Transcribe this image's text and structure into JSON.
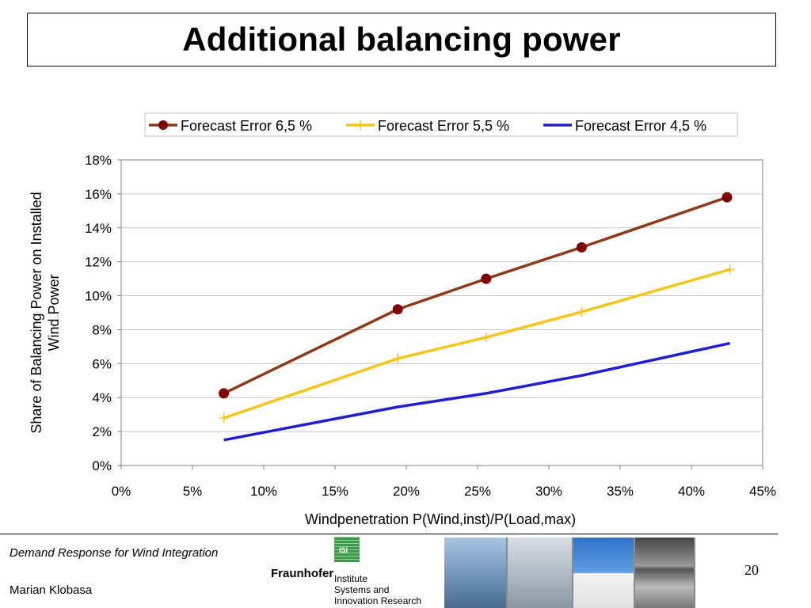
{
  "slide": {
    "title": "Additional balancing power",
    "footer_left_top": "Demand Response for Wind Integration",
    "footer_left_bottom": "Marian Klobasa",
    "page_number": "20",
    "logo": {
      "brand": "Fraunhofer",
      "badge": "ISI",
      "institute_lines": [
        "Institute",
        "Systems and",
        "Innovation Research"
      ]
    }
  },
  "chart_data": {
    "type": "line",
    "title": "",
    "xlabel": "Windpenetration P(Wind,inst)/P(Load,max)",
    "ylabel_lines": [
      "Share of Balancing Power on Installed",
      "Wind Power"
    ],
    "xlim": [
      0,
      0.45
    ],
    "ylim": [
      0,
      0.18
    ],
    "x_ticks": [
      "0%",
      "5%",
      "10%",
      "15%",
      "20%",
      "25%",
      "30%",
      "35%",
      "40%",
      "45%"
    ],
    "y_ticks": [
      "0%",
      "2%",
      "4%",
      "6%",
      "8%",
      "10%",
      "12%",
      "14%",
      "16%",
      "18%"
    ],
    "grid": "horizontal",
    "legend_position": "top",
    "series": [
      {
        "name": "Forecast Error 6,5 %",
        "color": "#8b3a1a",
        "marker": "circle",
        "x": [
          0.072,
          0.194,
          0.256,
          0.323,
          0.425
        ],
        "y": [
          0.0425,
          0.092,
          0.11,
          0.1285,
          0.158
        ]
      },
      {
        "name": "Forecast Error 5,5 %",
        "color": "#f5c518",
        "marker": "plus",
        "x": [
          0.072,
          0.194,
          0.256,
          0.323,
          0.427
        ],
        "y": [
          0.028,
          0.063,
          0.0755,
          0.0905,
          0.1155
        ]
      },
      {
        "name": "Forecast Error 4,5 %",
        "color": "#1e1ed2",
        "marker": "none",
        "x": [
          0.072,
          0.194,
          0.256,
          0.323,
          0.427
        ],
        "y": [
          0.015,
          0.0345,
          0.0425,
          0.053,
          0.072
        ]
      }
    ]
  }
}
